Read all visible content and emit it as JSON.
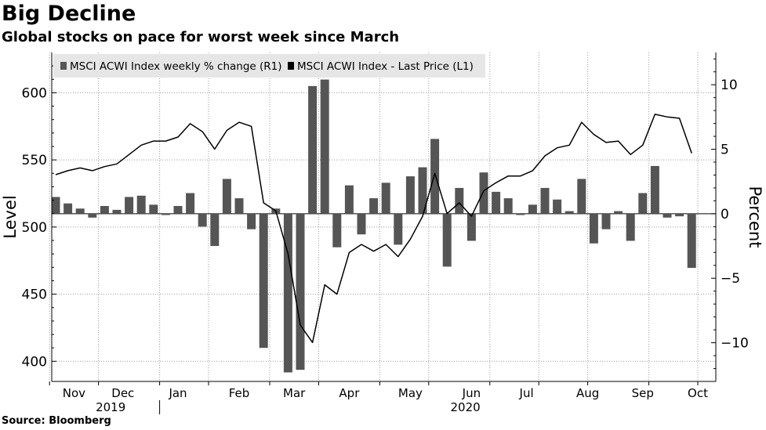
{
  "title": "Big Decline",
  "subtitle": "Global stocks on pace for worst week since March",
  "source": "Source: Bloomberg",
  "colors": {
    "bar": "#555555",
    "line": "#000000",
    "grid": "#999999",
    "legend_bg": "#e6e6e6"
  },
  "chart_data": {
    "type": "bar+line",
    "left_axis": {
      "label": "Level",
      "ticks": [
        400,
        450,
        500,
        550,
        600
      ],
      "range": [
        385,
        630
      ]
    },
    "right_axis": {
      "label": "Percent",
      "ticks": [
        -10,
        -5,
        0,
        5,
        10
      ],
      "range": [
        -13,
        12.5
      ]
    },
    "x_labels": [
      "Nov",
      "Dec",
      "Jan",
      "Feb",
      "Mar",
      "Apr",
      "May",
      "Jun",
      "Jul",
      "Aug",
      "Sep",
      "Oct"
    ],
    "x_label_weeks": [
      1.5,
      5.5,
      10,
      15,
      19.5,
      24,
      29,
      34,
      38.5,
      43.5,
      48,
      52.5
    ],
    "year_labels": [
      {
        "label": "2019",
        "week": 4.5
      },
      {
        "label": "2020",
        "week": 33.5
      }
    ],
    "year_divider_week": 8.5,
    "legend": [
      "MSCI ACWI Index weekly % change (R1)",
      "MSCI ACWI Index - Last Price (L1)"
    ],
    "series": [
      {
        "name": "MSCI ACWI Index weekly % change (R1)",
        "axis": "right",
        "type": "bar",
        "values": [
          1.3,
          0.8,
          0.4,
          -0.3,
          0.6,
          0.3,
          1.3,
          1.4,
          0.7,
          -0.1,
          0.6,
          1.6,
          -1.0,
          -2.5,
          2.7,
          1.2,
          -1.2,
          -10.4,
          0.4,
          -12.3,
          -12.1,
          9.9,
          10.4,
          -2.6,
          2.2,
          -1.6,
          1.2,
          2.4,
          -2.4,
          2.9,
          3.6,
          5.8,
          -4.1,
          2.0,
          -2.1,
          3.2,
          1.7,
          1.2,
          -0.1,
          0.7,
          2.0,
          1.1,
          0.2,
          2.7,
          -2.3,
          -1.2,
          0.2,
          -2.1,
          1.6,
          3.7,
          -0.3,
          -0.2,
          -4.2
        ]
      },
      {
        "name": "MSCI ACWI Index - Last Price (L1)",
        "axis": "left",
        "type": "line",
        "values": [
          539,
          542,
          544,
          542,
          545,
          547,
          554,
          561,
          564,
          564,
          567,
          577,
          571,
          558,
          572,
          578,
          575,
          518,
          512,
          480,
          427,
          414,
          457,
          450,
          481,
          487,
          482,
          487,
          478,
          491,
          508,
          540,
          510,
          518,
          508,
          527,
          533,
          538,
          538,
          542,
          553,
          559,
          561,
          578,
          569,
          563,
          564,
          554,
          561,
          584,
          582,
          581,
          555
        ]
      }
    ]
  }
}
